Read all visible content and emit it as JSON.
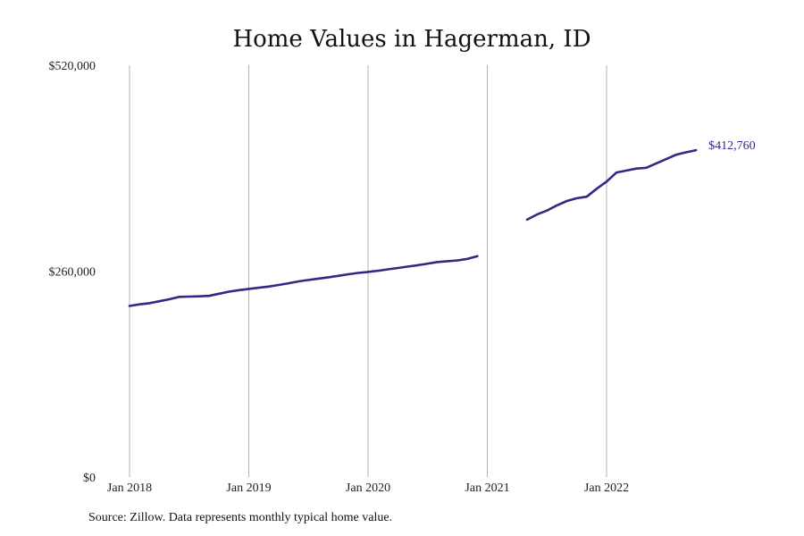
{
  "chart_data": {
    "type": "line",
    "title": "Home Values in Hagerman, ID",
    "xlabel": "",
    "ylabel": "",
    "ylim": [
      0,
      520000
    ],
    "yticks": [
      {
        "value": 0,
        "label": "$0"
      },
      {
        "value": 260000,
        "label": "$260,000"
      },
      {
        "value": 520000,
        "label": "$520,000"
      }
    ],
    "xlim": [
      "2018-01",
      "2022-12"
    ],
    "xticks": [
      {
        "value": "2018-01",
        "label": "Jan 2018"
      },
      {
        "value": "2019-01",
        "label": "Jan 2019"
      },
      {
        "value": "2020-01",
        "label": "Jan 2020"
      },
      {
        "value": "2021-01",
        "label": "Jan 2021"
      },
      {
        "value": "2022-01",
        "label": "Jan 2022"
      }
    ],
    "grid": "vertical",
    "end_label": "$412,760",
    "series": [
      {
        "color": "#2e2a85",
        "segments": [
          {
            "x": [
              "2018-01",
              "2018-02",
              "2018-03",
              "2018-04",
              "2018-05",
              "2018-06",
              "2018-07",
              "2018-08",
              "2018-09",
              "2018-10",
              "2018-11",
              "2018-12",
              "2019-01",
              "2019-02",
              "2019-03",
              "2019-04",
              "2019-05",
              "2019-06",
              "2019-07",
              "2019-08",
              "2019-09",
              "2019-10",
              "2019-11",
              "2019-12",
              "2020-01",
              "2020-02",
              "2020-03",
              "2020-04",
              "2020-05",
              "2020-06",
              "2020-07",
              "2020-08",
              "2020-09",
              "2020-10",
              "2020-11",
              "2020-12"
            ],
            "y": [
              216000,
              218000,
              219500,
              222000,
              224500,
              227500,
              227800,
              228200,
              228800,
              231500,
              234000,
              236000,
              237500,
              239000,
              240500,
              242500,
              244700,
              247000,
              248800,
              250500,
              252200,
              254000,
              256000,
              257800,
              259000,
              260500,
              262200,
              264000,
              265800,
              267500,
              269500,
              271500,
              272500,
              273500,
              275500,
              279000
            ]
          },
          {
            "x": [
              "2021-05",
              "2021-06",
              "2021-07",
              "2021-08",
              "2021-09",
              "2021-10",
              "2021-11",
              "2021-12",
              "2022-01",
              "2022-02",
              "2022-03",
              "2022-04",
              "2022-05",
              "2022-06",
              "2022-07",
              "2022-08",
              "2022-09",
              "2022-10"
            ],
            "y": [
              325000,
              331500,
              336500,
              343000,
              348500,
              352000,
              354000,
              364000,
              373000,
              384500,
              387000,
              389500,
              390500,
              396000,
              401500,
              407000,
              410000,
              412760
            ]
          }
        ]
      }
    ]
  },
  "footer": {
    "source": "Source: Zillow. Data represents monthly typical home value."
  }
}
